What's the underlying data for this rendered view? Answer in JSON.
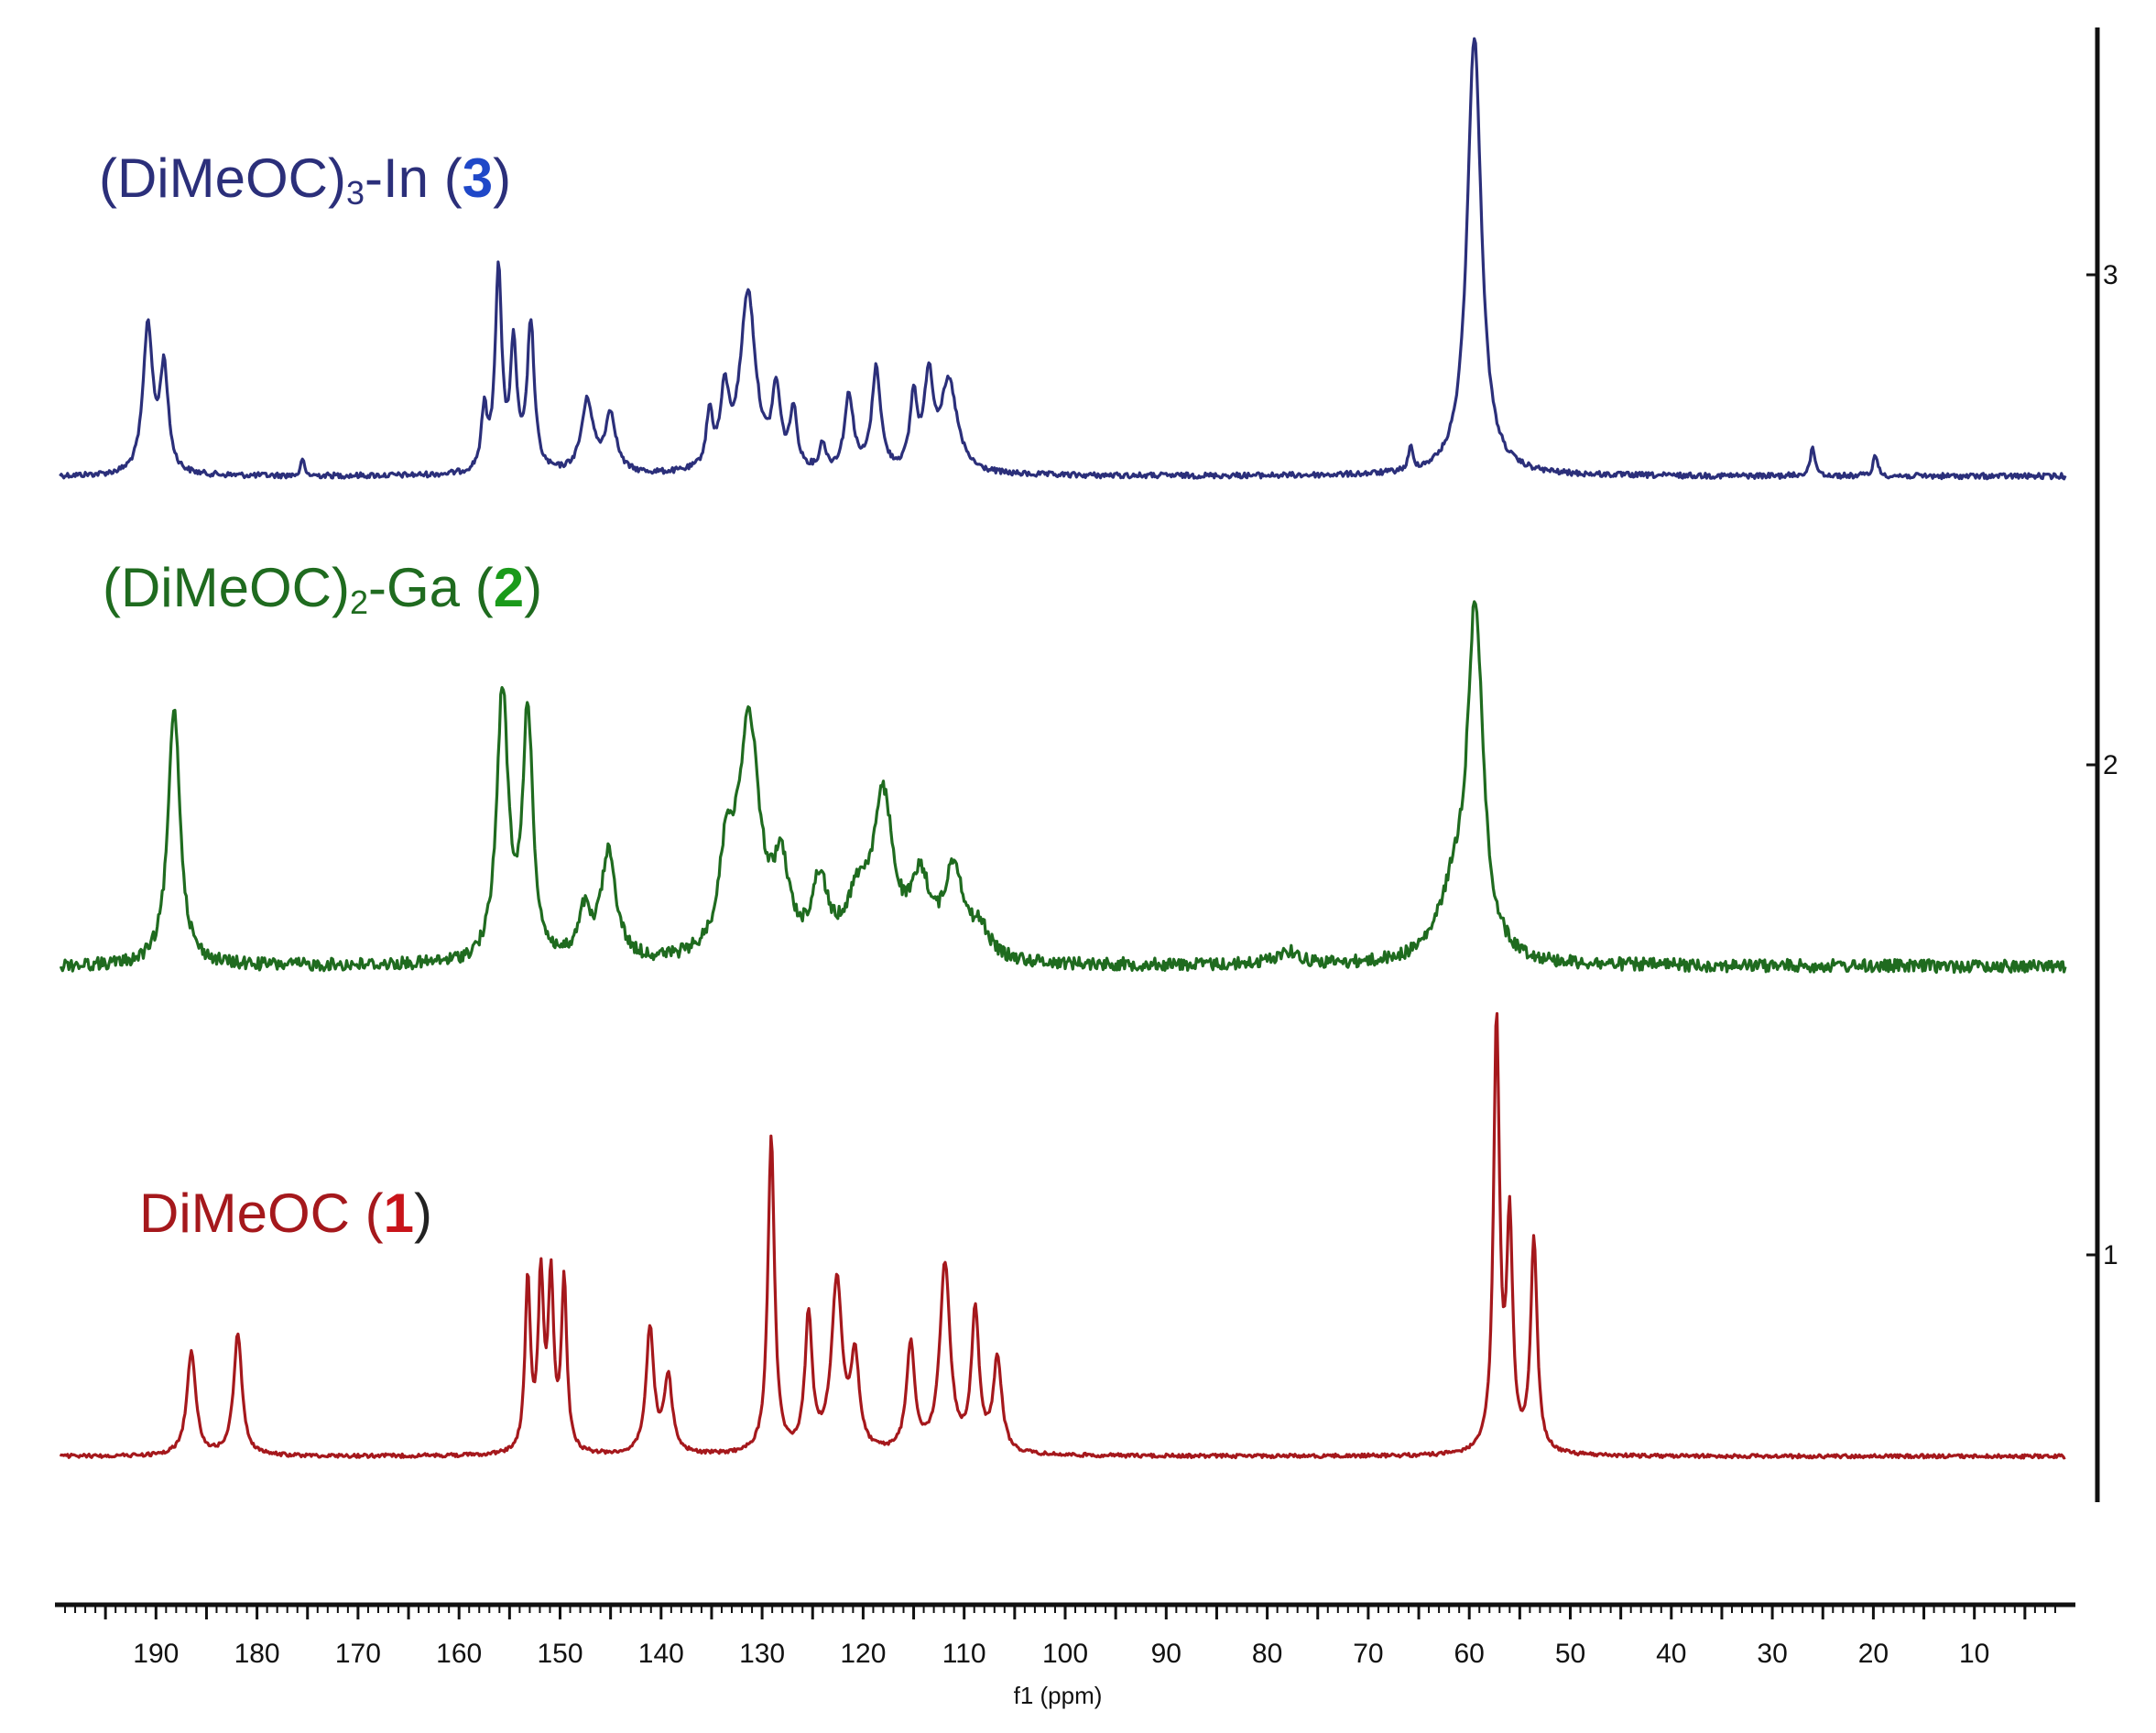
{
  "colors": {
    "series3": "#2b2f7a",
    "series2": "#1f6b1f",
    "series1": "#a5181c",
    "num3": "#1f48c8",
    "num2": "#1a9a1a",
    "num1": "#c8141a",
    "axis": "#111111"
  },
  "labels": {
    "s3": {
      "pre": "(DiMeOC)",
      "sub": "3",
      "post": "-In (",
      "num": "3",
      "close": ")"
    },
    "s2": {
      "pre": "(DiMeOC)",
      "sub": "2",
      "post": "-Ga (",
      "num": "2",
      "close": ")"
    },
    "s1": {
      "pre": "DiMeOC (",
      "num": "1",
      "close": ")"
    }
  },
  "chart_data": {
    "type": "line",
    "xlabel": "f1 (ppm)",
    "xlim": [
      200,
      0
    ],
    "x_reversed": true,
    "x_ticks": [
      190,
      180,
      170,
      160,
      150,
      140,
      130,
      120,
      110,
      100,
      90,
      80,
      70,
      60,
      50,
      40,
      30,
      20,
      10
    ],
    "x_minor_step": 1,
    "x_major_step": 5,
    "right_axis_ticks": [
      "3",
      "2",
      "1"
    ],
    "grid": false,
    "series": [
      {
        "name": "(DiMeOC)3-In (3)",
        "offset": 3,
        "peaks": [
          [
            190.8,
            0.33,
            0.8
          ],
          [
            189.2,
            0.23,
            0.7
          ],
          [
            175.5,
            0.04,
            0.25
          ],
          [
            157.5,
            0.13,
            0.5
          ],
          [
            156.1,
            0.45,
            0.55
          ],
          [
            154.6,
            0.27,
            0.55
          ],
          [
            152.9,
            0.33,
            0.6
          ],
          [
            147.3,
            0.16,
            1.0
          ],
          [
            145.0,
            0.13,
            0.9
          ],
          [
            135.2,
            0.12,
            0.55
          ],
          [
            133.7,
            0.16,
            0.7
          ],
          [
            131.4,
            0.4,
            1.3
          ],
          [
            128.6,
            0.17,
            0.7
          ],
          [
            126.9,
            0.13,
            0.6
          ],
          [
            124.0,
            0.06,
            0.5
          ],
          [
            121.4,
            0.17,
            0.75
          ],
          [
            118.7,
            0.23,
            0.75
          ],
          [
            115.0,
            0.16,
            0.6
          ],
          [
            113.5,
            0.2,
            0.75
          ],
          [
            111.5,
            0.2,
            1.4
          ],
          [
            65.8,
            0.05,
            0.35
          ],
          [
            59.5,
            0.98,
            1.2
          ],
          [
            26.0,
            0.06,
            0.45
          ],
          [
            19.8,
            0.05,
            0.35
          ]
        ]
      },
      {
        "name": "(DiMeOC)2-Ga (2)",
        "offset": 2,
        "peaks": [
          [
            188.2,
            0.58,
            1.0
          ],
          [
            155.7,
            0.6,
            0.95
          ],
          [
            153.2,
            0.55,
            0.85
          ],
          [
            147.6,
            0.1,
            0.9
          ],
          [
            145.2,
            0.24,
            1.3
          ],
          [
            133.5,
            0.2,
            1.2
          ],
          [
            131.3,
            0.52,
            1.8
          ],
          [
            128.1,
            0.18,
            1.3
          ],
          [
            124.3,
            0.16,
            1.3
          ],
          [
            120.5,
            0.12,
            2.0
          ],
          [
            118.0,
            0.34,
            1.7
          ],
          [
            114.3,
            0.16,
            1.6
          ],
          [
            111.0,
            0.2,
            1.6
          ],
          [
            108.4,
            0.06,
            1.5
          ],
          [
            78.0,
            0.03,
            2.0
          ],
          [
            61.5,
            0.14,
            2.6
          ],
          [
            59.4,
            0.76,
            1.3
          ]
        ]
      },
      {
        "name": "DiMeOC (1)",
        "offset": 1,
        "peaks": [
          [
            186.5,
            0.23,
            0.75
          ],
          [
            181.9,
            0.27,
            0.7
          ],
          [
            153.2,
            0.38,
            0.45
          ],
          [
            151.9,
            0.38,
            0.45
          ],
          [
            150.9,
            0.38,
            0.45
          ],
          [
            149.6,
            0.38,
            0.45
          ],
          [
            141.1,
            0.28,
            0.65
          ],
          [
            139.3,
            0.17,
            0.7
          ],
          [
            129.1,
            0.71,
            0.55
          ],
          [
            125.4,
            0.3,
            0.6
          ],
          [
            122.6,
            0.38,
            0.9
          ],
          [
            120.8,
            0.2,
            0.7
          ],
          [
            115.3,
            0.24,
            0.7
          ],
          [
            111.9,
            0.42,
            0.85
          ],
          [
            108.9,
            0.31,
            0.65
          ],
          [
            106.7,
            0.21,
            0.7
          ],
          [
            57.3,
            0.96,
            0.5
          ],
          [
            56.0,
            0.5,
            0.5
          ],
          [
            53.6,
            0.47,
            0.55
          ]
        ]
      }
    ]
  }
}
